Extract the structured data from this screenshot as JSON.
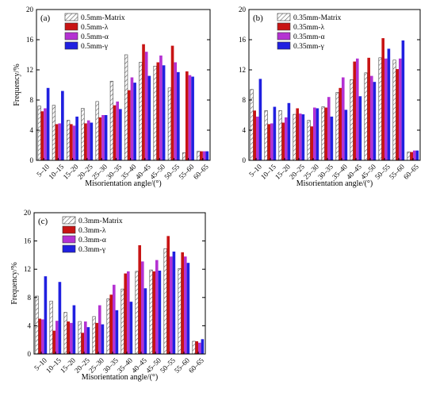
{
  "colors": {
    "Matrix": "#ffffff",
    "lambda": "#c81414",
    "alpha": "#b432d2",
    "gamma": "#2020e0",
    "hatch": "#555555"
  },
  "chart_data": [
    {
      "type": "bar",
      "panel_label": "(a)",
      "xlabel": "Misorientation angle/(°)",
      "ylabel": "Frequency/%",
      "ylim": [
        0,
        20
      ],
      "yticks": [
        "0",
        "4",
        "8",
        "12",
        "16",
        "20"
      ],
      "legend_position": "top-left",
      "categories": [
        "5–10",
        "10–15",
        "15–20",
        "20–25",
        "25–30",
        "30–35",
        "35–40",
        "40–45",
        "45–50",
        "50–55",
        "55–60",
        "60–65"
      ],
      "series": [
        {
          "name": "0.5mm-Matrix",
          "key": "Matrix",
          "values": [
            7.2,
            7.3,
            5.3,
            6.9,
            7.8,
            10.5,
            14.0,
            13.0,
            12.5,
            9.6,
            1.0,
            1.2
          ]
        },
        {
          "name": "0.5mm-λ",
          "key": "lambda",
          "values": [
            6.5,
            4.8,
            4.8,
            4.9,
            5.7,
            7.3,
            9.3,
            15.4,
            13.0,
            15.2,
            11.8,
            1.2
          ]
        },
        {
          "name": "0.5mm-α",
          "key": "alpha",
          "values": [
            6.9,
            4.9,
            4.6,
            5.3,
            6.0,
            7.8,
            11.0,
            14.4,
            13.9,
            13.0,
            11.3,
            1.2
          ]
        },
        {
          "name": "0.5mm-γ",
          "key": "gamma",
          "values": [
            9.6,
            9.2,
            5.8,
            5.0,
            6.0,
            6.8,
            10.3,
            11.2,
            12.6,
            11.7,
            11.1,
            1.2
          ]
        }
      ]
    },
    {
      "type": "bar",
      "panel_label": "(b)",
      "xlabel": "Misorientation angle/(°)",
      "ylabel": "",
      "ylim": [
        0,
        20
      ],
      "yticks": [
        "0",
        "4",
        "8",
        "12",
        "16",
        "20"
      ],
      "legend_position": "top-left",
      "categories": [
        "5–10",
        "10–15",
        "15–20",
        "20–25",
        "25–30",
        "30–35",
        "35–40",
        "40–45",
        "45–50",
        "50–55",
        "55–60",
        "60–65"
      ],
      "series": [
        {
          "name": "0.35mm-Matrix",
          "key": "Matrix",
          "values": [
            9.4,
            6.6,
            6.6,
            6.1,
            5.3,
            7.1,
            9.0,
            10.7,
            11.6,
            13.6,
            13.3,
            1.1
          ]
        },
        {
          "name": "0.35mm-λ",
          "key": "lambda",
          "values": [
            6.6,
            4.8,
            5.0,
            6.9,
            4.5,
            7.0,
            9.6,
            13.1,
            13.6,
            16.2,
            12.1,
            1.1
          ]
        },
        {
          "name": "0.35mm-α",
          "key": "alpha",
          "values": [
            5.8,
            4.9,
            5.7,
            6.2,
            7.0,
            8.4,
            11.0,
            13.5,
            11.2,
            13.5,
            13.5,
            1.3
          ]
        },
        {
          "name": "0.35mm-γ",
          "key": "gamma",
          "values": [
            10.8,
            7.1,
            7.6,
            6.1,
            6.9,
            5.8,
            6.7,
            8.5,
            10.4,
            14.8,
            15.9,
            1.3
          ]
        }
      ]
    },
    {
      "type": "bar",
      "panel_label": "(c)",
      "xlabel": "Misorientation angle/(°)",
      "ylabel": "Frequency/%",
      "ylim": [
        0,
        20
      ],
      "yticks": [
        "0",
        "4",
        "8",
        "12",
        "16",
        "20"
      ],
      "legend_position": "top-left",
      "categories": [
        "5–10",
        "10–15",
        "15–20",
        "20–25",
        "25–30",
        "30–35",
        "35–40",
        "40–45",
        "45–50",
        "50–55",
        "55–60",
        "60–65"
      ],
      "series": [
        {
          "name": "0.3mm-Matrix",
          "key": "Matrix",
          "values": [
            8.2,
            7.5,
            5.9,
            4.6,
            5.3,
            7.8,
            9.2,
            11.7,
            11.9,
            14.9,
            12.1,
            1.8
          ]
        },
        {
          "name": "0.3mm-λ",
          "key": "lambda",
          "values": [
            5.0,
            3.3,
            4.6,
            3.0,
            4.4,
            8.4,
            11.4,
            15.4,
            11.7,
            16.7,
            14.4,
            1.8
          ]
        },
        {
          "name": "0.3mm-α",
          "key": "alpha",
          "values": [
            4.9,
            4.7,
            4.4,
            4.6,
            6.9,
            9.8,
            11.7,
            13.1,
            13.3,
            13.8,
            13.8,
            1.6
          ]
        },
        {
          "name": "0.3mm-γ",
          "key": "gamma",
          "values": [
            11.0,
            10.2,
            6.9,
            3.8,
            4.2,
            6.2,
            7.4,
            9.3,
            11.8,
            14.5,
            12.9,
            2.1
          ]
        }
      ]
    }
  ]
}
